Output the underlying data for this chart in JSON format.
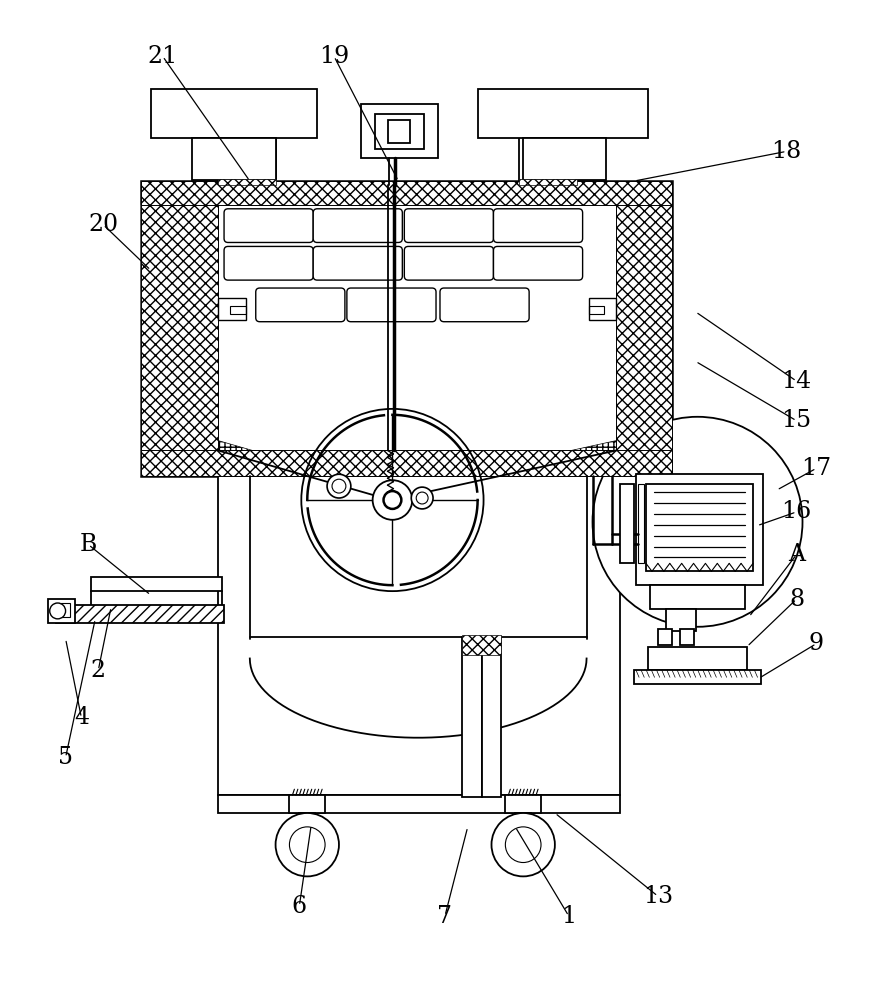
{
  "bg": "#ffffff",
  "lc": "#000000",
  "lw": 1.3,
  "fw": 8.77,
  "fh": 10.0,
  "dpi": 100,
  "annotations": [
    [
      "21",
      160,
      52,
      248,
      178
    ],
    [
      "19",
      333,
      52,
      398,
      178
    ],
    [
      "18",
      790,
      148,
      636,
      178
    ],
    [
      "20",
      100,
      222,
      148,
      268
    ],
    [
      "14",
      800,
      380,
      698,
      310
    ],
    [
      "15",
      800,
      420,
      698,
      360
    ],
    [
      "17",
      820,
      468,
      780,
      490
    ],
    [
      "16",
      800,
      512,
      760,
      526
    ],
    [
      "A",
      800,
      555,
      752,
      618
    ],
    [
      "8",
      800,
      600,
      750,
      648
    ],
    [
      "9",
      820,
      645,
      762,
      680
    ],
    [
      "13",
      660,
      900,
      556,
      816
    ],
    [
      "1",
      570,
      920,
      516,
      830
    ],
    [
      "7",
      445,
      920,
      468,
      830
    ],
    [
      "6",
      298,
      910,
      310,
      828
    ],
    [
      "5",
      62,
      760,
      92,
      620
    ],
    [
      "4",
      78,
      720,
      62,
      640
    ],
    [
      "2",
      95,
      672,
      108,
      608
    ],
    [
      "B",
      85,
      545,
      148,
      596
    ]
  ]
}
